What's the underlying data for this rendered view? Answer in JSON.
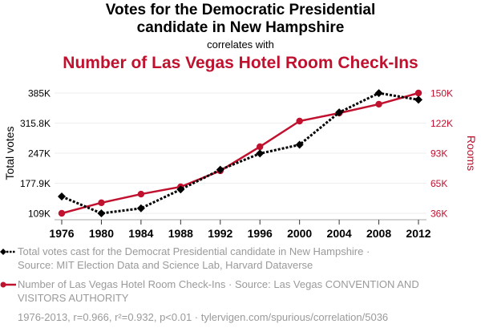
{
  "header": {
    "title_line1": "Votes for the Democratic Presidential",
    "title_line2": "candidate in New Hampshire",
    "connector": "correlates with",
    "subtitle": "Number of Las Vegas Hotel Room Check-Ins"
  },
  "colors": {
    "votes": "#000000",
    "rooms": "#c0112f",
    "grid": "#eeeeee",
    "legend_text": "#9a9a9a"
  },
  "chart_data": {
    "type": "line",
    "x": [
      1976,
      1980,
      1984,
      1988,
      1992,
      1996,
      2000,
      2004,
      2008,
      2012
    ],
    "series": [
      {
        "name": "Total votes",
        "axis": "left",
        "style": "dotted-diamond",
        "values": [
          147600,
          108900,
          120400,
          163700,
          209000,
          246200,
          266300,
          340500,
          384800,
          369600
        ]
      },
      {
        "name": "Rooms",
        "axis": "right",
        "style": "solid-circle",
        "values": [
          36000,
          46000,
          54200,
          61100,
          76300,
          99100,
          123400,
          131000,
          139400,
          150000
        ]
      }
    ],
    "xlabel": "",
    "ylabel_left": "Total votes",
    "ylabel_right": "Rooms",
    "ylim_left": [
      109000,
      385000
    ],
    "ylim_right": [
      36000,
      150000
    ],
    "yticks_left": [
      "109K",
      "177.9K",
      "247K",
      "315.8K",
      "385K"
    ],
    "yticks_right": [
      "36K",
      "65K",
      "93K",
      "122K",
      "150K"
    ],
    "xticks": [
      "1976",
      "1980",
      "1984",
      "1988",
      "1992",
      "1996",
      "2000",
      "2004",
      "2008",
      "2012"
    ],
    "grid": true
  },
  "legend": {
    "votes_line1": "Total votes cast for the Democrat Presidential candidate in New Hampshire ·",
    "votes_line2": "Source: MIT Election Data and Science Lab, Harvard Dataverse",
    "rooms_line1": "Number of Las Vegas Hotel Room Check-Ins · Source: Las Vegas CONVENTION AND",
    "rooms_line2": "VISITORS AUTHORITY",
    "stats": "1976-2013, r=0.966, r²=0.932, p<0.01 · tylervigen.com/spurious/correlation/5036"
  }
}
